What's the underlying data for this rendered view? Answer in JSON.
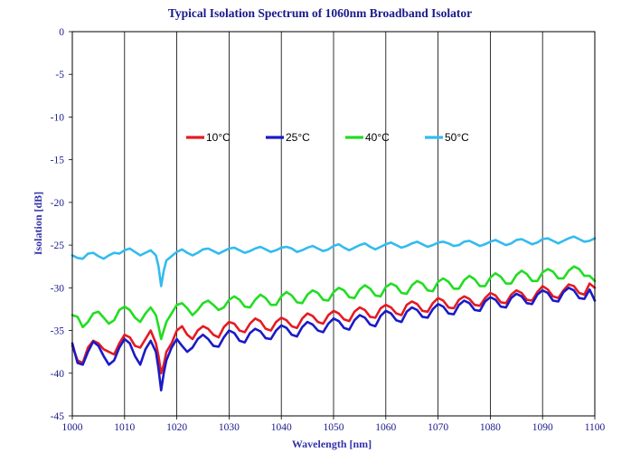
{
  "chart_data": {
    "type": "line",
    "title": "Typical Isolation Spectrum of 1060nm Broadband Isolator",
    "xlabel": "Wavelength [nm]",
    "ylabel": "Isolation [dB]",
    "xlim": [
      1000,
      1100
    ],
    "ylim": [
      -45,
      0
    ],
    "xticks": [
      1000,
      1010,
      1020,
      1030,
      1040,
      1050,
      1060,
      1070,
      1080,
      1090,
      1100
    ],
    "yticks": [
      0,
      -5,
      -10,
      -15,
      -20,
      -25,
      -30,
      -35,
      -40,
      -45
    ],
    "grid": "vertical",
    "legend": "upper-center",
    "colors": {
      "title": "#1a1a8c",
      "axis_label": "#3333aa",
      "tick_label": "#1a1a8c",
      "grid": "#000000",
      "frame": "#000000"
    },
    "series": [
      {
        "name": "10°C",
        "color": "#e41b23",
        "x": [
          1000,
          1001,
          1002,
          1003,
          1004,
          1005,
          1006,
          1007,
          1008,
          1009,
          1010,
          1011,
          1012,
          1013,
          1014,
          1015,
          1016,
          1016.5,
          1017,
          1017.5,
          1018,
          1019,
          1020,
          1021,
          1022,
          1023,
          1024,
          1025,
          1026,
          1027,
          1028,
          1029,
          1030,
          1031,
          1032,
          1033,
          1034,
          1035,
          1036,
          1037,
          1038,
          1039,
          1040,
          1041,
          1042,
          1043,
          1044,
          1045,
          1046,
          1047,
          1048,
          1049,
          1050,
          1051,
          1052,
          1053,
          1054,
          1055,
          1056,
          1057,
          1058,
          1059,
          1060,
          1061,
          1062,
          1063,
          1064,
          1065,
          1066,
          1067,
          1068,
          1069,
          1070,
          1071,
          1072,
          1073,
          1074,
          1075,
          1076,
          1077,
          1078,
          1079,
          1080,
          1081,
          1082,
          1083,
          1084,
          1085,
          1086,
          1087,
          1088,
          1089,
          1090,
          1091,
          1092,
          1093,
          1094,
          1095,
          1096,
          1097,
          1098,
          1099,
          1100
        ],
        "y": [
          -36.8,
          -38.5,
          -38.8,
          -37.0,
          -36.2,
          -36.5,
          -37.2,
          -37.5,
          -37.8,
          -36.5,
          -35.5,
          -35.8,
          -36.8,
          -37.0,
          -36.0,
          -35.0,
          -36.5,
          -38.0,
          -40.0,
          -39.0,
          -37.5,
          -36.5,
          -35.0,
          -34.5,
          -35.5,
          -36.0,
          -35.0,
          -34.5,
          -34.8,
          -35.5,
          -35.8,
          -34.6,
          -34.0,
          -34.2,
          -35.0,
          -35.2,
          -34.2,
          -33.6,
          -33.9,
          -34.8,
          -35.0,
          -34.0,
          -33.5,
          -33.8,
          -34.5,
          -34.7,
          -33.6,
          -33.0,
          -33.3,
          -34.0,
          -34.2,
          -33.2,
          -32.7,
          -33.0,
          -33.7,
          -33.9,
          -32.8,
          -32.3,
          -32.6,
          -33.4,
          -33.5,
          -32.4,
          -32.0,
          -32.3,
          -33.0,
          -33.2,
          -32.0,
          -31.6,
          -31.9,
          -32.7,
          -32.8,
          -31.8,
          -31.2,
          -31.5,
          -32.3,
          -32.4,
          -31.4,
          -31.0,
          -31.3,
          -32.0,
          -32.1,
          -31.2,
          -30.6,
          -30.9,
          -31.7,
          -31.8,
          -30.8,
          -30.3,
          -30.6,
          -31.4,
          -31.5,
          -30.5,
          -29.8,
          -30.2,
          -31.0,
          -31.2,
          -30.3,
          -29.6,
          -29.8,
          -30.6,
          -30.8,
          -29.5,
          -30.0
        ]
      },
      {
        "name": "25°C",
        "color": "#1a1ac8",
        "x": [
          1000,
          1001,
          1002,
          1003,
          1004,
          1005,
          1006,
          1007,
          1008,
          1009,
          1010,
          1011,
          1012,
          1013,
          1014,
          1015,
          1016,
          1016.5,
          1017,
          1017.5,
          1018,
          1019,
          1020,
          1021,
          1022,
          1023,
          1024,
          1025,
          1026,
          1027,
          1028,
          1029,
          1030,
          1031,
          1032,
          1033,
          1034,
          1035,
          1036,
          1037,
          1038,
          1039,
          1040,
          1041,
          1042,
          1043,
          1044,
          1045,
          1046,
          1047,
          1048,
          1049,
          1050,
          1051,
          1052,
          1053,
          1054,
          1055,
          1056,
          1057,
          1058,
          1059,
          1060,
          1061,
          1062,
          1063,
          1064,
          1065,
          1066,
          1067,
          1068,
          1069,
          1070,
          1071,
          1072,
          1073,
          1074,
          1075,
          1076,
          1077,
          1078,
          1079,
          1080,
          1081,
          1082,
          1083,
          1084,
          1085,
          1086,
          1087,
          1088,
          1089,
          1090,
          1091,
          1092,
          1093,
          1094,
          1095,
          1096,
          1097,
          1098,
          1099,
          1100
        ],
        "y": [
          -36.5,
          -38.8,
          -39.0,
          -37.5,
          -36.3,
          -36.8,
          -38.0,
          -39.0,
          -38.5,
          -37.0,
          -36.0,
          -36.5,
          -38.0,
          -39.0,
          -37.2,
          -36.2,
          -37.5,
          -39.5,
          -42.0,
          -40.0,
          -38.5,
          -37.0,
          -36.0,
          -36.8,
          -37.5,
          -37.0,
          -36.0,
          -35.5,
          -36.0,
          -36.8,
          -36.9,
          -35.8,
          -35.0,
          -35.3,
          -36.2,
          -36.4,
          -35.3,
          -34.8,
          -35.1,
          -35.9,
          -36.0,
          -35.0,
          -34.4,
          -34.7,
          -35.5,
          -35.7,
          -34.6,
          -34.0,
          -34.3,
          -35.0,
          -35.2,
          -34.2,
          -33.6,
          -33.9,
          -34.7,
          -34.9,
          -33.8,
          -33.2,
          -33.5,
          -34.3,
          -34.5,
          -33.3,
          -32.7,
          -33.0,
          -33.8,
          -34.0,
          -32.8,
          -32.3,
          -32.6,
          -33.4,
          -33.5,
          -32.5,
          -31.9,
          -32.2,
          -33.0,
          -33.1,
          -32.0,
          -31.5,
          -31.8,
          -32.6,
          -32.7,
          -31.6,
          -31.1,
          -31.4,
          -32.2,
          -32.3,
          -31.2,
          -30.7,
          -31.0,
          -31.8,
          -31.9,
          -30.8,
          -30.3,
          -30.6,
          -31.5,
          -31.6,
          -30.5,
          -30.0,
          -30.3,
          -31.2,
          -31.3,
          -30.2,
          -31.5
        ]
      },
      {
        "name": "40°C",
        "color": "#22dd22",
        "x": [
          1000,
          1001,
          1002,
          1003,
          1004,
          1005,
          1006,
          1007,
          1008,
          1009,
          1010,
          1011,
          1012,
          1013,
          1014,
          1015,
          1016,
          1016.5,
          1017,
          1017.5,
          1018,
          1019,
          1020,
          1021,
          1022,
          1023,
          1024,
          1025,
          1026,
          1027,
          1028,
          1029,
          1030,
          1031,
          1032,
          1033,
          1034,
          1035,
          1036,
          1037,
          1038,
          1039,
          1040,
          1041,
          1042,
          1043,
          1044,
          1045,
          1046,
          1047,
          1048,
          1049,
          1050,
          1051,
          1052,
          1053,
          1054,
          1055,
          1056,
          1057,
          1058,
          1059,
          1060,
          1061,
          1062,
          1063,
          1064,
          1065,
          1066,
          1067,
          1068,
          1069,
          1070,
          1071,
          1072,
          1073,
          1074,
          1075,
          1076,
          1077,
          1078,
          1079,
          1080,
          1081,
          1082,
          1083,
          1084,
          1085,
          1086,
          1087,
          1088,
          1089,
          1090,
          1091,
          1092,
          1093,
          1094,
          1095,
          1096,
          1097,
          1098,
          1099,
          1100
        ],
        "y": [
          -33.2,
          -33.4,
          -34.6,
          -34.0,
          -33.0,
          -32.8,
          -33.5,
          -34.2,
          -33.8,
          -32.6,
          -32.2,
          -32.6,
          -33.5,
          -34.0,
          -33.0,
          -32.3,
          -33.2,
          -34.5,
          -36.0,
          -35.0,
          -34.0,
          -33.0,
          -32.0,
          -31.8,
          -32.4,
          -33.2,
          -32.6,
          -31.8,
          -31.5,
          -32.0,
          -32.6,
          -32.3,
          -31.4,
          -31.0,
          -31.4,
          -32.2,
          -32.3,
          -31.4,
          -30.8,
          -31.2,
          -32.0,
          -32.0,
          -31.0,
          -30.5,
          -30.9,
          -31.7,
          -31.8,
          -30.8,
          -30.3,
          -30.6,
          -31.4,
          -31.5,
          -30.5,
          -30.0,
          -30.3,
          -31.1,
          -31.2,
          -30.2,
          -29.7,
          -30.1,
          -30.9,
          -31.0,
          -29.9,
          -29.5,
          -29.8,
          -30.6,
          -30.7,
          -29.7,
          -29.2,
          -29.5,
          -30.3,
          -30.4,
          -29.3,
          -28.9,
          -29.3,
          -30.1,
          -30.1,
          -29.1,
          -28.6,
          -29.0,
          -29.8,
          -29.8,
          -28.8,
          -28.3,
          -28.7,
          -29.5,
          -29.5,
          -28.5,
          -28.0,
          -28.4,
          -29.2,
          -29.2,
          -28.2,
          -27.8,
          -28.1,
          -28.9,
          -28.9,
          -28.0,
          -27.5,
          -27.8,
          -28.6,
          -28.6,
          -29.2
        ]
      },
      {
        "name": "50°C",
        "color": "#33bbee",
        "x": [
          1000,
          1001,
          1002,
          1003,
          1004,
          1005,
          1006,
          1007,
          1008,
          1009,
          1010,
          1011,
          1012,
          1013,
          1014,
          1015,
          1016,
          1016.5,
          1017,
          1017.5,
          1018,
          1019,
          1020,
          1021,
          1022,
          1023,
          1024,
          1025,
          1026,
          1027,
          1028,
          1029,
          1030,
          1031,
          1032,
          1033,
          1034,
          1035,
          1036,
          1037,
          1038,
          1039,
          1040,
          1041,
          1042,
          1043,
          1044,
          1045,
          1046,
          1047,
          1048,
          1049,
          1050,
          1051,
          1052,
          1053,
          1054,
          1055,
          1056,
          1057,
          1058,
          1059,
          1060,
          1061,
          1062,
          1063,
          1064,
          1065,
          1066,
          1067,
          1068,
          1069,
          1070,
          1071,
          1072,
          1073,
          1074,
          1075,
          1076,
          1077,
          1078,
          1079,
          1080,
          1081,
          1082,
          1083,
          1084,
          1085,
          1086,
          1087,
          1088,
          1089,
          1090,
          1091,
          1092,
          1093,
          1094,
          1095,
          1096,
          1097,
          1098,
          1099,
          1100
        ],
        "y": [
          -26.2,
          -26.5,
          -26.6,
          -26.0,
          -25.9,
          -26.3,
          -26.6,
          -26.2,
          -25.9,
          -26.0,
          -25.6,
          -25.4,
          -25.8,
          -26.2,
          -25.9,
          -25.6,
          -26.2,
          -27.5,
          -29.8,
          -28.0,
          -26.8,
          -26.3,
          -25.8,
          -25.5,
          -25.9,
          -26.2,
          -25.9,
          -25.5,
          -25.4,
          -25.7,
          -26.0,
          -25.7,
          -25.4,
          -25.3,
          -25.6,
          -25.9,
          -25.7,
          -25.4,
          -25.2,
          -25.5,
          -25.8,
          -25.6,
          -25.3,
          -25.2,
          -25.4,
          -25.8,
          -25.6,
          -25.3,
          -25.1,
          -25.4,
          -25.7,
          -25.5,
          -25.1,
          -24.9,
          -25.3,
          -25.6,
          -25.3,
          -25.0,
          -24.8,
          -25.2,
          -25.5,
          -25.2,
          -24.9,
          -24.7,
          -25.0,
          -25.3,
          -25.1,
          -24.8,
          -24.6,
          -24.9,
          -25.2,
          -25.0,
          -24.7,
          -24.6,
          -24.8,
          -25.1,
          -25.0,
          -24.6,
          -24.5,
          -24.8,
          -25.1,
          -24.9,
          -24.6,
          -24.4,
          -24.7,
          -25.0,
          -24.8,
          -24.4,
          -24.3,
          -24.6,
          -24.9,
          -24.7,
          -24.3,
          -24.2,
          -24.5,
          -24.8,
          -24.5,
          -24.2,
          -24.0,
          -24.3,
          -24.6,
          -24.5,
          -24.2
        ]
      }
    ]
  }
}
